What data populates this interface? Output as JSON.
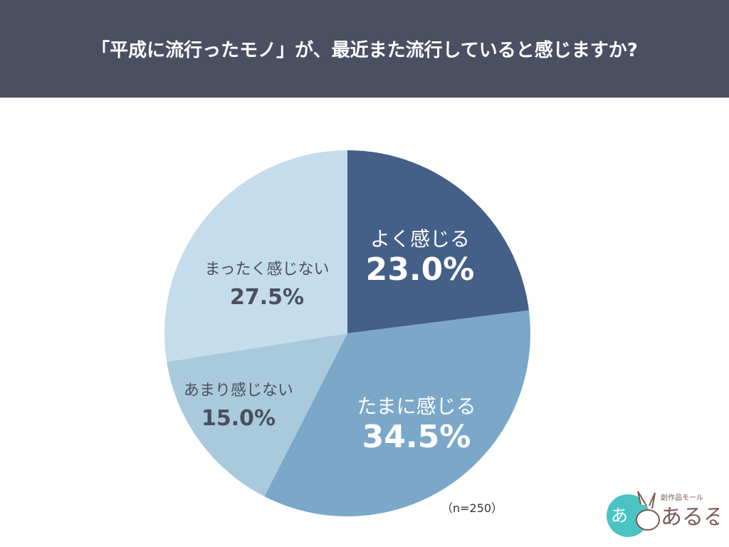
{
  "title": "「平成に流行ったモノ」が、最近また流行していると感じますか?",
  "note": "（n=250）",
  "logo": {
    "text": "創作品モール あるる"
  },
  "chart_data": {
    "type": "pie",
    "start": "top",
    "direction": "clockwise",
    "slices": [
      {
        "label": "よく感じる",
        "value": 23.0,
        "display": "23.0%",
        "color": "#445f88",
        "text_color": "#ffffff"
      },
      {
        "label": "たまに感じる",
        "value": 34.5,
        "display": "34.5%",
        "color": "#7ba8c8",
        "text_color": "#ffffff"
      },
      {
        "label": "あまり感じない",
        "value": 15.0,
        "display": "15.0%",
        "color": "#a9cadc",
        "text_color": "#4a4f5e"
      },
      {
        "label": "まったく感じない",
        "value": 27.5,
        "display": "27.5%",
        "color": "#c4dceb",
        "text_color": "#4a4f5e"
      }
    ]
  }
}
